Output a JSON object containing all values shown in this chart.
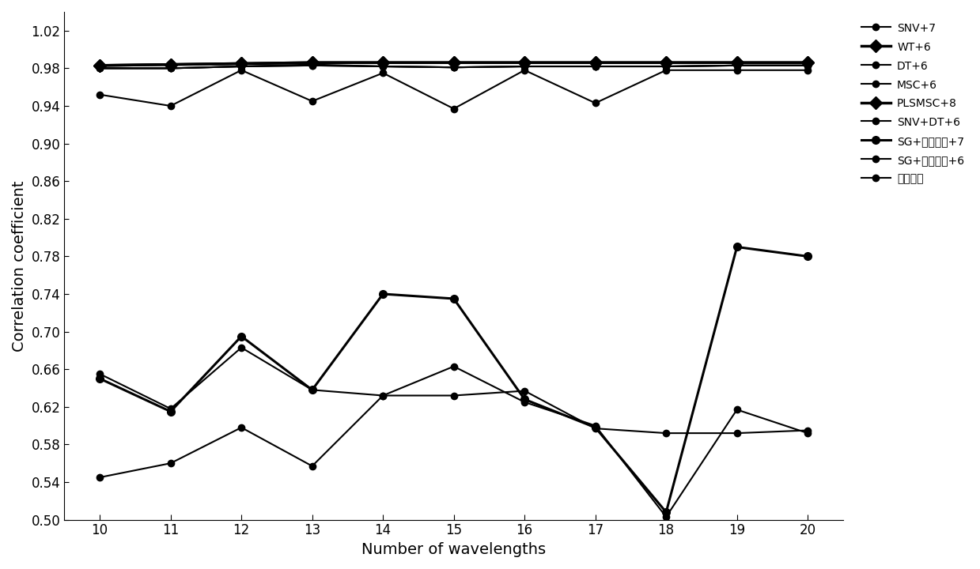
{
  "x": [
    10,
    11,
    12,
    13,
    14,
    15,
    16,
    17,
    18,
    19,
    20
  ],
  "series": {
    "SNV+7": [
      0.98,
      0.98,
      0.982,
      0.984,
      0.982,
      0.981,
      0.982,
      0.982,
      0.982,
      0.983,
      0.983
    ],
    "WT+6": [
      0.983,
      0.984,
      0.985,
      0.986,
      0.986,
      0.986,
      0.986,
      0.986,
      0.986,
      0.986,
      0.986
    ],
    "DT+6": [
      0.98,
      0.98,
      0.982,
      0.983,
      0.982,
      0.981,
      0.982,
      0.982,
      0.982,
      0.983,
      0.983
    ],
    "MSC+6": [
      0.98,
      0.98,
      0.982,
      0.983,
      0.982,
      0.981,
      0.982,
      0.982,
      0.982,
      0.983,
      0.983
    ],
    "PLSMSC+8": [
      0.983,
      0.984,
      0.985,
      0.986,
      0.986,
      0.986,
      0.986,
      0.986,
      0.986,
      0.986,
      0.986
    ],
    "SNV+DT+6": [
      0.952,
      0.94,
      0.978,
      0.945,
      0.975,
      0.937,
      0.978,
      0.943,
      0.978,
      0.978,
      0.978
    ],
    "SG+一阶导数+7": [
      0.65,
      0.615,
      0.695,
      0.638,
      0.74,
      0.735,
      0.628,
      0.598,
      0.508,
      0.79,
      0.78
    ],
    "SG+二阶导数+6": [
      0.545,
      0.56,
      0.598,
      0.557,
      0.632,
      0.663,
      0.625,
      0.6,
      0.503,
      0.617,
      0.592
    ],
    "无预处理": [
      0.655,
      0.618,
      0.683,
      0.638,
      0.632,
      0.632,
      0.637,
      0.597,
      0.592,
      0.592,
      0.595
    ]
  },
  "line_widths": {
    "SNV+7": 1.5,
    "WT+6": 2.5,
    "DT+6": 1.5,
    "MSC+6": 1.5,
    "PLSMSC+8": 2.5,
    "SNV+DT+6": 1.5,
    "SG+一阶导数+7": 2.2,
    "SG+二阶导数+6": 1.5,
    "无预处理": 1.5
  },
  "marker_sizes": {
    "SNV+7": 6,
    "WT+6": 8,
    "DT+6": 6,
    "MSC+6": 6,
    "PLSMSC+8": 8,
    "SNV+DT+6": 6,
    "SG+一阶导数+7": 7,
    "SG+二阶导数+6": 6,
    "无预处理": 6
  },
  "markers": {
    "SNV+7": "o",
    "WT+6": "D",
    "DT+6": "o",
    "MSC+6": "o",
    "PLSMSC+8": "D",
    "SNV+DT+6": "o",
    "SG+一阶导数+7": "o",
    "SG+二阶导数+6": "o",
    "无预处理": "o"
  },
  "legend_labels": [
    "SNV+7",
    "WT+6",
    "DT+6",
    "MSC+6",
    "PLSMSC+8",
    "SNV+DT+6",
    "SG+一阶导数+7",
    "SG+二阶导数+6",
    "无预处理"
  ],
  "xlabel": "Number of wavelengths",
  "ylabel": "Correlation coefficient",
  "xlim": [
    9.5,
    20.5
  ],
  "ylim": [
    0.5,
    1.04
  ],
  "xticks": [
    10,
    11,
    12,
    13,
    14,
    15,
    16,
    17,
    18,
    19,
    20
  ],
  "yticks": [
    0.5,
    0.54,
    0.58,
    0.62,
    0.66,
    0.7,
    0.74,
    0.78,
    0.82,
    0.86,
    0.9,
    0.94,
    0.98,
    1.02
  ],
  "background_color": "#ffffff",
  "axis_fontsize": 14,
  "legend_fontsize": 12,
  "tick_fontsize": 12
}
